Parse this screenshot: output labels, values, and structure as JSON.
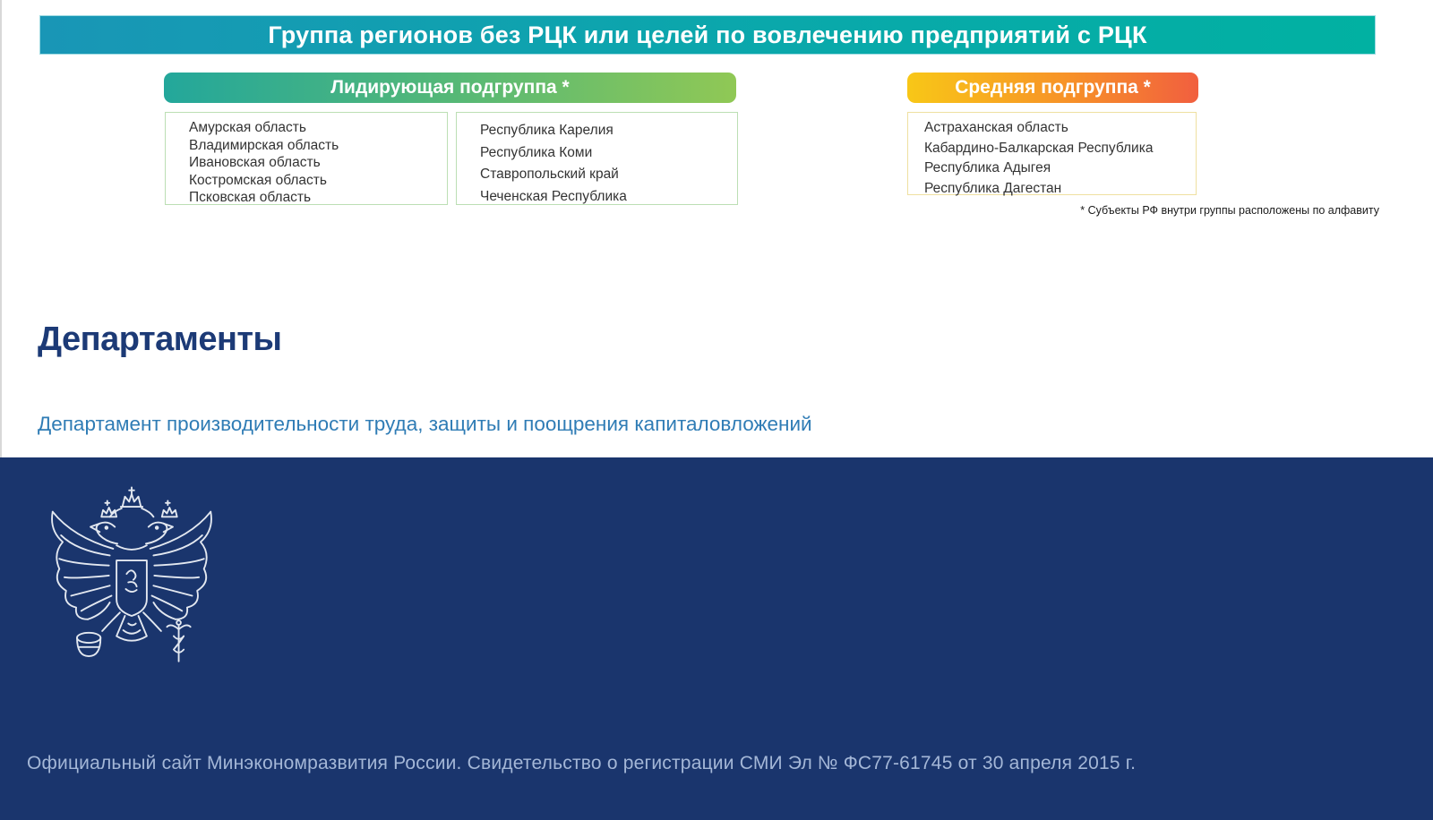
{
  "banner": {
    "title": "Группа регионов без РЦК или целей по вовлечению предприятий с РЦК"
  },
  "subgroups": {
    "leading": {
      "label": "Лидирующая подгруппа *",
      "list_a": [
        "Амурская область",
        "Владимирская область",
        "Ивановская область",
        "Костромская область",
        "Псковская область"
      ],
      "list_b": [
        "Республика Карелия",
        "Республика Коми",
        "Ставропольский край",
        "Чеченская Республика"
      ]
    },
    "middle": {
      "label": "Средняя подгруппа *",
      "list": [
        "Астраханская область",
        "Кабардино-Балкарская Республика",
        "Республика Адыгея",
        "Республика Дагестан"
      ]
    },
    "footnote": "* Субъекты РФ внутри группы расположены по алфавиту"
  },
  "departments": {
    "heading": "Департаменты",
    "link_label": "Департамент производительности труда, защиты и поощрения капиталовложений"
  },
  "footer": {
    "text": "Официальный сайт Минэкономразвития России. Свидетельство о регистрации СМИ Эл № ФС77-61745 от 30 апреля 2015 г.",
    "emblem": "coat-of-arms-of-russia"
  },
  "colors": {
    "banner_gradient_start": "#1996b6",
    "banner_gradient_end": "#01b1a2",
    "leading_pill_start": "#23a79b",
    "leading_pill_end": "#90c855",
    "middle_pill_start": "#f8c717",
    "middle_pill_end": "#f15f3f",
    "green_box_border": "#bcdfb4",
    "yellow_box_border": "#efe0a0",
    "heading_color": "#1c3a76",
    "link_color": "#2f7cb5",
    "footer_background": "#1a356d",
    "footer_text_color": "#a4b7d7"
  }
}
